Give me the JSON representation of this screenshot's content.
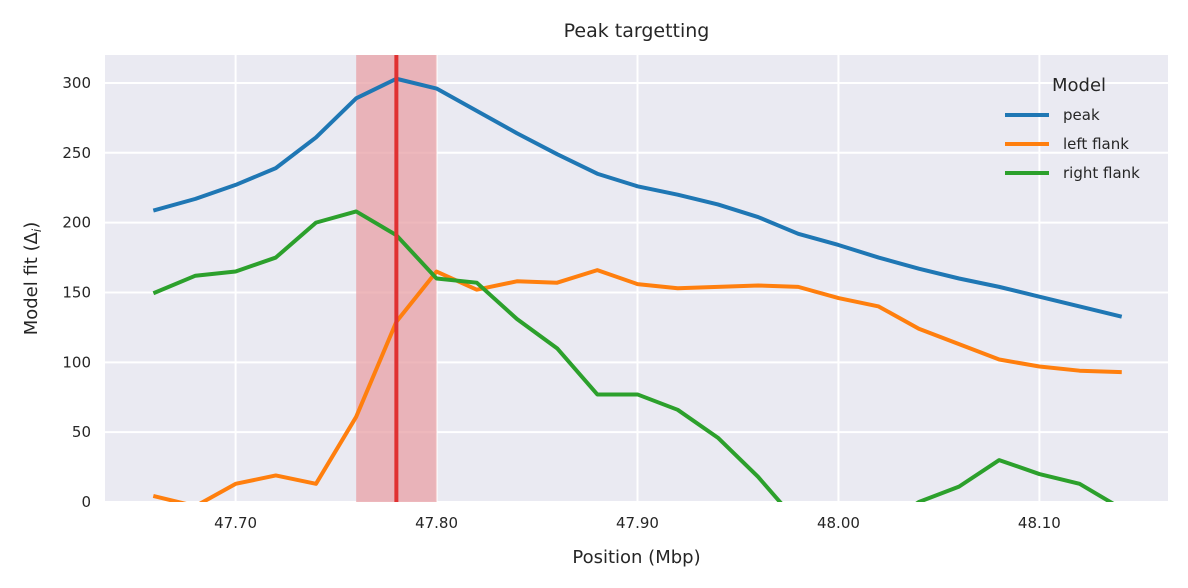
{
  "chart_data": {
    "type": "line",
    "title": "Peak targetting",
    "xlabel": "Position (Mbp)",
    "ylabel": "Model fit (Δ",
    "ylabel_sub": "i",
    "ylabel_close": ")",
    "xlim": [
      47.635,
      48.164
    ],
    "ylim": [
      0,
      320
    ],
    "xticks": [
      47.7,
      47.8,
      47.9,
      48.0,
      48.1
    ],
    "xtick_labels": [
      "47.70",
      "47.80",
      "47.90",
      "48.00",
      "48.10"
    ],
    "yticks": [
      0,
      50,
      100,
      150,
      200,
      250,
      300
    ],
    "ytick_labels": [
      "0",
      "50",
      "100",
      "150",
      "200",
      "250",
      "300"
    ],
    "grid": true,
    "legend": {
      "title": "Model",
      "placement": "top-right"
    },
    "highlight_band": {
      "x_start": 47.76,
      "x_end": 47.8,
      "color": "#e8a0a6"
    },
    "vertical_line": {
      "x": 47.78,
      "color": "#e03131"
    },
    "x": [
      47.66,
      47.68,
      47.7,
      47.72,
      47.74,
      47.76,
      47.78,
      47.8,
      47.82,
      47.84,
      47.86,
      47.88,
      47.9,
      47.92,
      47.94,
      47.96,
      47.98,
      48.0,
      48.02,
      48.04,
      48.06,
      48.08,
      48.1,
      48.12,
      48.14
    ],
    "series": [
      {
        "name": "peak",
        "color": "#1f77b4",
        "values": [
          209,
          217,
          227,
          239,
          261,
          289,
          303,
          296,
          280,
          264,
          249,
          235,
          226,
          220,
          213,
          204,
          192,
          184,
          175,
          167,
          160,
          154,
          147,
          140,
          133
        ]
      },
      {
        "name": "left flank",
        "color": "#ff7f0e",
        "values": [
          4,
          -3,
          13,
          19,
          13,
          61,
          129,
          165,
          152,
          158,
          157,
          166,
          156,
          153,
          154,
          155,
          154,
          146,
          140,
          124,
          113,
          102,
          97,
          94,
          93
        ]
      },
      {
        "name": "right flank",
        "color": "#2ca02c",
        "values": [
          150,
          162,
          165,
          175,
          200,
          208,
          191,
          160,
          157,
          131,
          110,
          77,
          77,
          66,
          46,
          18,
          -15,
          -20,
          -20,
          0,
          11,
          30,
          20,
          13,
          -4
        ]
      }
    ]
  }
}
